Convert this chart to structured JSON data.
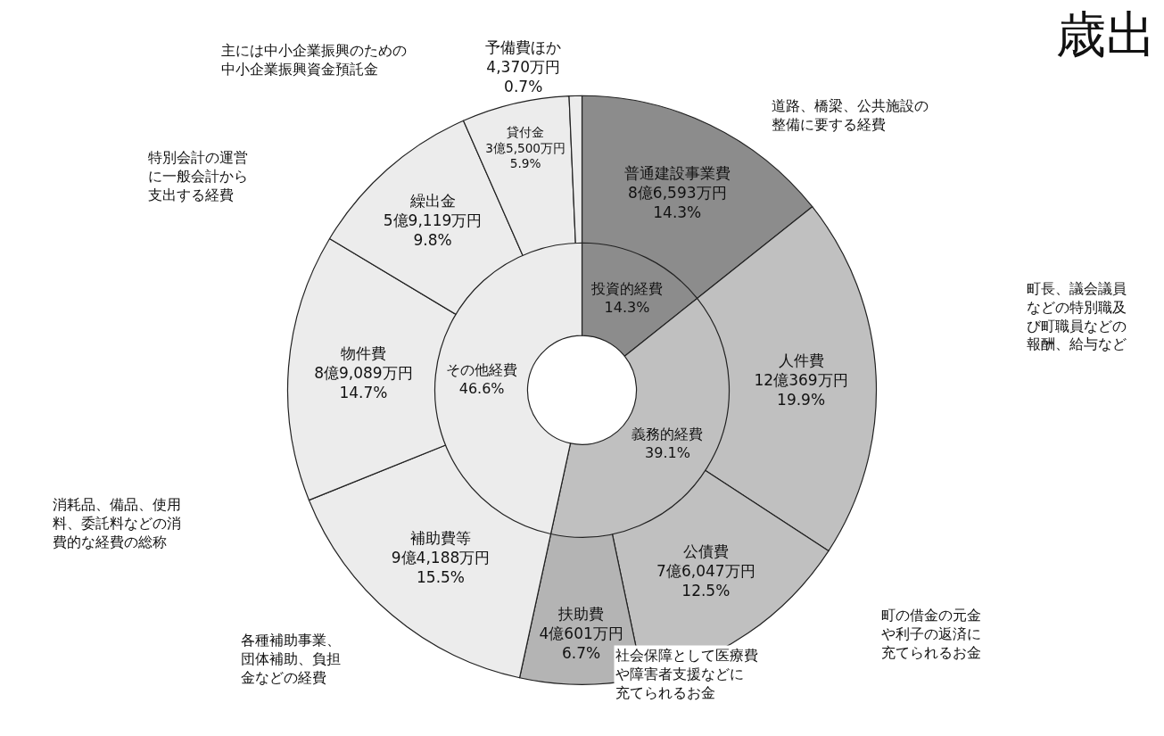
{
  "chart_data": [
    {
      "type": "donut",
      "title": "歳出",
      "legend": false,
      "categories": [
        "普通建設事業費",
        "人件費",
        "公債費",
        "扶助費",
        "補助費等",
        "物件費",
        "繰出金",
        "貸付金",
        "予備費ほか"
      ],
      "values": [
        14.3,
        19.9,
        12.5,
        6.7,
        15.5,
        14.7,
        9.8,
        5.9,
        0.7
      ],
      "value_labels": [
        "8億6,593万円\n14.3%",
        "12億369万円\n19.9%",
        "7億6,047万円\n12.5%",
        "4億601万円\n6.7%",
        "9億4,188万円\n15.5%",
        "8億9,089万円\n14.7%",
        "5億9,119万円\n9.8%",
        "3億5,500万円\n5.9%",
        "4,370万円\n0.7%"
      ],
      "colors": [
        "#8c8c8c",
        "#c0c0c0",
        "#c0c0c0",
        "#b4b4b4",
        "#ececec",
        "#ececec",
        "#ececec",
        "#ececec",
        "#ececec"
      ],
      "annotations": [
        "主には中小企業振興のための中小企業振興資金預託金",
        "道路、橋梁、公共施設の整備に要する経費",
        "特別会計の運営に一般会計から支出する経費",
        "町長、議会議員などの特別職及び町職員などの報酬、給与など",
        "消耗品、備品、使用料、委託料などの消費的な経費の総称",
        "各種補助事業、団体補助、負担金などの経費",
        "社会保障として医療費や障害者支援などに充てられるお金",
        "町の借金の元金や利子の返済に充てられるお金"
      ]
    },
    {
      "type": "donut",
      "legend": false,
      "categories": [
        "投資的経費",
        "義務的経費",
        "その他経費"
      ],
      "values": [
        14.3,
        39.1,
        46.6
      ],
      "value_labels": [
        "14.3%",
        "39.1%",
        "46.6%"
      ],
      "colors": [
        "#8c8c8c",
        "#c0c0c0",
        "#ececec"
      ]
    }
  ]
}
